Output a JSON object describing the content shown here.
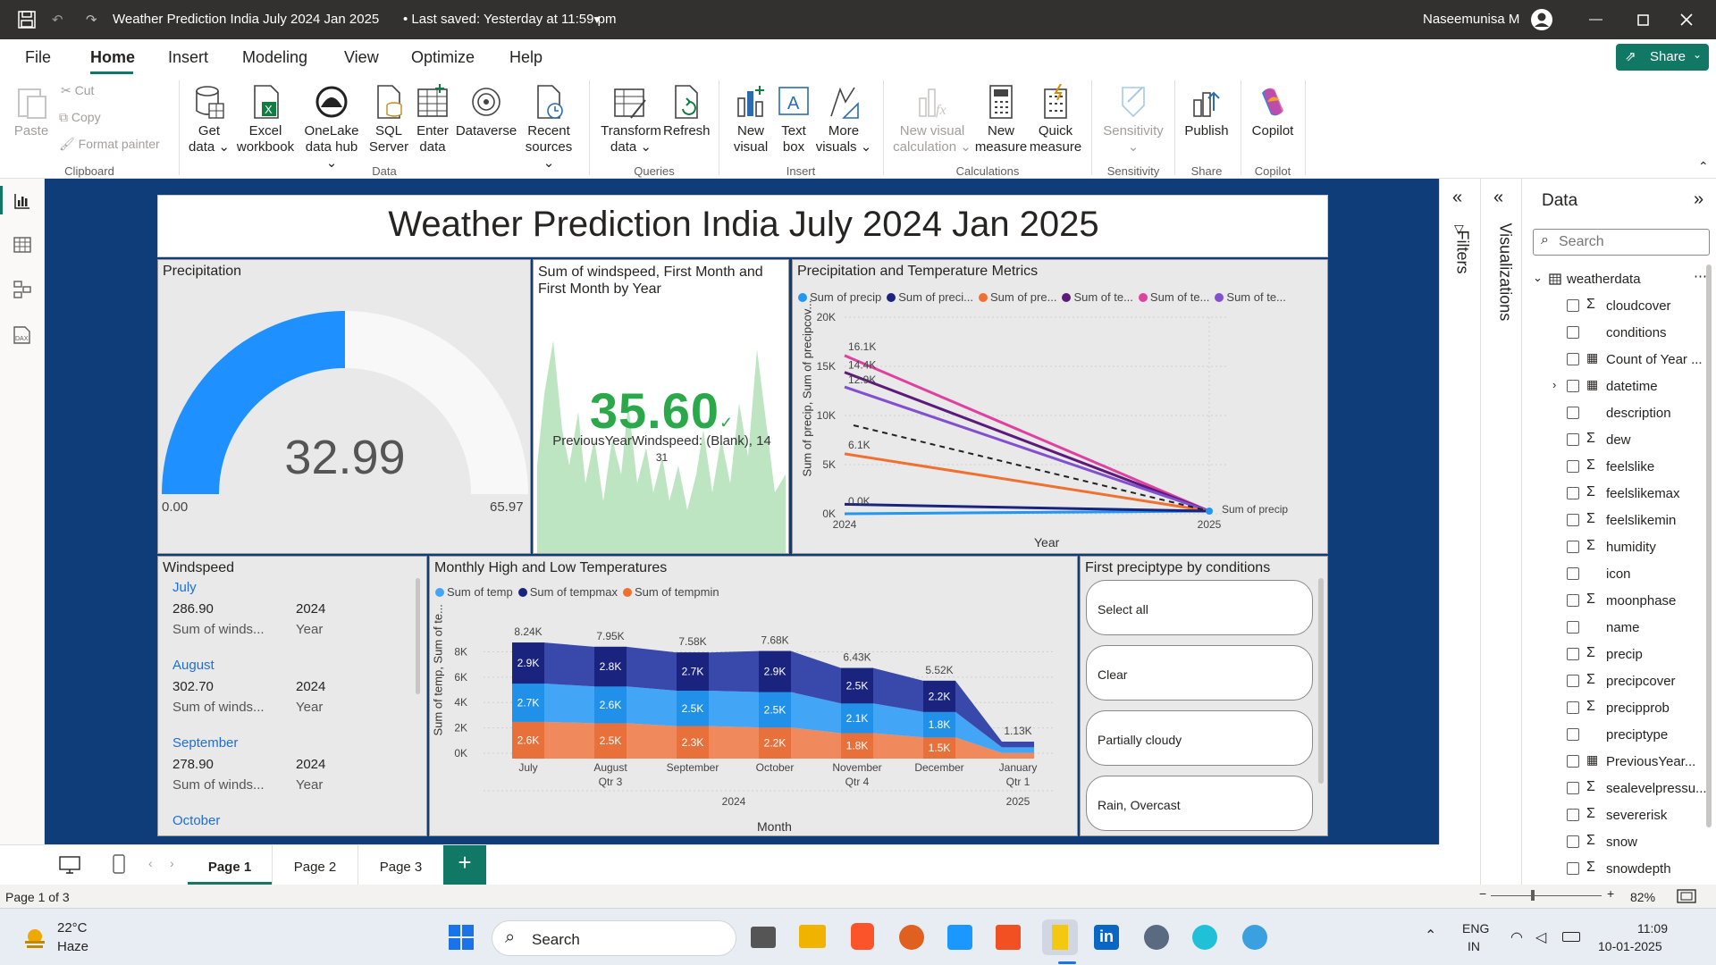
{
  "titlebar": {
    "title": "Weather Prediction India July 2024 Jan 2025",
    "saved": "•  Last saved: Yesterday at 11:59 pm",
    "user": "Naseemunisa M"
  },
  "menu": [
    "File",
    "Home",
    "Insert",
    "Modeling",
    "View",
    "Optimize",
    "Help"
  ],
  "share_label": "Share",
  "ribbon": {
    "clipboard": {
      "paste": "Paste",
      "cut": "Cut",
      "copy": "Copy",
      "format_painter": "Format painter",
      "group": "Clipboard"
    },
    "data": {
      "get_data": [
        "Get",
        "data"
      ],
      "excel": [
        "Excel",
        "workbook"
      ],
      "onelake": [
        "OneLake",
        "data hub"
      ],
      "sql": [
        "SQL",
        "Server"
      ],
      "enter": [
        "Enter",
        "data"
      ],
      "dataverse": [
        "Dataverse",
        ""
      ],
      "recent": [
        "Recent",
        "sources"
      ],
      "group": "Data"
    },
    "queries": {
      "transform": [
        "Transform",
        "data"
      ],
      "refresh": [
        "Refresh",
        ""
      ],
      "group": "Queries"
    },
    "insert": {
      "new_visual": [
        "New",
        "visual"
      ],
      "text_box": [
        "Text",
        "box"
      ],
      "more_visuals": [
        "More",
        "visuals"
      ],
      "group": "Insert"
    },
    "calculations": {
      "new_visual_calc": [
        "New visual",
        "calculation"
      ],
      "new_measure": [
        "New",
        "measure"
      ],
      "quick_measure": [
        "Quick",
        "measure"
      ],
      "group": "Calculations"
    },
    "sensitivity": {
      "label": "Sensitivity",
      "group": "Sensitivity"
    },
    "share": {
      "publish": "Publish",
      "group": "Share"
    },
    "copilot": {
      "label": "Copilot",
      "group": "Copilot"
    }
  },
  "report": {
    "title": "Weather Prediction India July 2024 Jan 2025",
    "precip_gauge": {
      "title": "Precipitation",
      "value": "32.99",
      "min": "0.00",
      "max": "65.97",
      "fraction": 0.5
    },
    "windspeed_card": {
      "title": "Sum of windspeed, First Month and First Month by Year",
      "value": "35.60",
      "sub": "PreviousYearWindspeed: (Blank), 14",
      "sub2": "31"
    },
    "metrics_chart": {
      "title": "Precipitation and Temperature Metrics",
      "legend": [
        {
          "name": "Sum of precip",
          "color": "#2196f3"
        },
        {
          "name": "Sum of preci...",
          "color": "#1a237e"
        },
        {
          "name": "Sum of pre...",
          "color": "#f07030"
        },
        {
          "name": "Sum of te...",
          "color": "#5c1a7a"
        },
        {
          "name": "Sum of te...",
          "color": "#e040a0"
        },
        {
          "name": "Sum of te...",
          "color": "#8050d0"
        }
      ],
      "ylabel": "Sum of precip, Sum of precipcov...",
      "xlabel": "Year",
      "yticks": [
        "20K",
        "15K",
        "10K",
        "5K",
        "0K"
      ],
      "xticks": [
        "2024",
        "2025"
      ],
      "labels": [
        "16.1K",
        "14.4K",
        "12.9K",
        "6.1K",
        "0.0K"
      ],
      "end_label": "Sum of precip"
    },
    "windspeed_list": {
      "title": "Windspeed",
      "items": [
        {
          "month": "July",
          "value": "286.90",
          "year": "2024",
          "measure": "Sum of winds...",
          "year_label": "Year"
        },
        {
          "month": "August",
          "value": "302.70",
          "year": "2024",
          "measure": "Sum of winds...",
          "year_label": "Year"
        },
        {
          "month": "September",
          "value": "278.90",
          "year": "2024",
          "measure": "Sum of winds...",
          "year_label": "Year"
        },
        {
          "month": "October",
          "value": "",
          "year": "",
          "measure": "",
          "year_label": ""
        }
      ]
    },
    "temps_chart": {
      "title": "Monthly High and Low Temperatures",
      "legend": [
        {
          "name": "Sum of temp",
          "color": "#42a5f5"
        },
        {
          "name": "Sum of tempmax",
          "color": "#1a237e"
        },
        {
          "name": "Sum of tempmin",
          "color": "#f07030"
        }
      ],
      "ylabel": "Sum of temp, Sum of te...",
      "xlabel": "Month",
      "yticks": [
        "8K",
        "6K",
        "4K",
        "2K",
        "0K"
      ],
      "chart_data": {
        "type": "area",
        "categories": [
          "July",
          "August",
          "September",
          "October",
          "November",
          "December",
          "January"
        ],
        "series": [
          {
            "name": "Sum of tempmin",
            "values": [
              2.6,
              2.5,
              2.3,
              2.2,
              1.8,
              1.5,
              0.4
            ],
            "labels": [
              "2.6K",
              "2.5K",
              "2.3K",
              "2.2K",
              "1.8K",
              "1.5K",
              ""
            ]
          },
          {
            "name": "Sum of temp",
            "values": [
              2.7,
              2.6,
              2.5,
              2.5,
              2.1,
              1.8,
              0.4
            ],
            "labels": [
              "2.7K",
              "2.6K",
              "2.5K",
              "2.5K",
              "2.1K",
              "1.8K",
              ""
            ]
          },
          {
            "name": "Sum of tempmax",
            "values": [
              2.9,
              2.8,
              2.7,
              2.9,
              2.5,
              2.2,
              0.4
            ],
            "labels": [
              "2.9K",
              "2.8K",
              "2.7K",
              "2.9K",
              "2.5K",
              "2.2K",
              ""
            ]
          }
        ],
        "totals": [
          "8.24K",
          "7.95K",
          "7.58K",
          "7.68K",
          "6.43K",
          "5.52K",
          "1.13K"
        ],
        "ylim": [
          0,
          9
        ]
      },
      "sub_axis": [
        {
          "text": "Qtr 3"
        },
        {
          "text": "Qtr 4"
        },
        {
          "text": "Qtr 1"
        }
      ],
      "years": [
        "2024",
        "2025"
      ]
    },
    "slicer": {
      "title": "First preciptype by conditions",
      "options": [
        "Select all",
        "Clear",
        "Partially cloudy",
        "Rain, Overcast"
      ]
    }
  },
  "pages": [
    "Page 1",
    "Page 2",
    "Page 3"
  ],
  "filters_label": "Filters",
  "visualizations_label": "Visualizations",
  "data_pane": {
    "title": "Data",
    "search_placeholder": "Search",
    "table": "weatherdata",
    "fields": [
      {
        "name": "cloudcover",
        "sum": true
      },
      {
        "name": "conditions",
        "sum": false
      },
      {
        "name": "Count of Year ...",
        "sum": false,
        "calc": true
      },
      {
        "name": "datetime",
        "sum": false,
        "calc": true,
        "expand": true
      },
      {
        "name": "description",
        "sum": false
      },
      {
        "name": "dew",
        "sum": true
      },
      {
        "name": "feelslike",
        "sum": true
      },
      {
        "name": "feelslikemax",
        "sum": true
      },
      {
        "name": "feelslikemin",
        "sum": true
      },
      {
        "name": "humidity",
        "sum": true
      },
      {
        "name": "icon",
        "sum": false
      },
      {
        "name": "moonphase",
        "sum": true
      },
      {
        "name": "name",
        "sum": false
      },
      {
        "name": "precip",
        "sum": true
      },
      {
        "name": "precipcover",
        "sum": true
      },
      {
        "name": "precipprob",
        "sum": true
      },
      {
        "name": "preciptype",
        "sum": false
      },
      {
        "name": "PreviousYear...",
        "sum": false,
        "calc": true
      },
      {
        "name": "sealevelpressu...",
        "sum": true
      },
      {
        "name": "severerisk",
        "sum": true
      },
      {
        "name": "snow",
        "sum": true
      },
      {
        "name": "snowdepth",
        "sum": true
      }
    ]
  },
  "status": {
    "page": "Page 1 of 3",
    "zoom": "82%"
  },
  "taskbar": {
    "temp": "22°C",
    "weather": "Haze",
    "search": "Search",
    "lang1": "ENG",
    "lang2": "IN",
    "time": "11:09",
    "date": "10-01-2025"
  }
}
